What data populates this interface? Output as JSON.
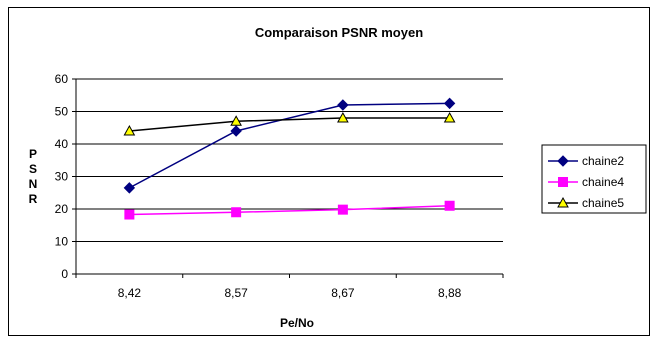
{
  "chart_data": {
    "type": "line",
    "title": "Comparaison PSNR moyen",
    "xlabel": "Pe/No",
    "ylabel": "PSNR",
    "categories": [
      "8,42",
      "8,57",
      "8,67",
      "8,88"
    ],
    "ylim": [
      0,
      60
    ],
    "yticks": [
      0,
      10,
      20,
      30,
      40,
      50,
      60
    ],
    "grid": "horizontal",
    "legend_position": "right",
    "series": [
      {
        "name": "chaine2",
        "values": [
          26.5,
          44,
          52,
          52.5
        ],
        "color": "#000080",
        "marker": "diamond",
        "marker_fill": "#000080"
      },
      {
        "name": "chaine4",
        "values": [
          18.3,
          19,
          19.8,
          21
        ],
        "color": "#FF00FF",
        "marker": "square",
        "marker_fill": "#FF00FF"
      },
      {
        "name": "chaine5",
        "values": [
          44,
          47,
          48,
          48
        ],
        "color": "#000000",
        "marker": "triangle",
        "marker_fill": "#FFFF00"
      }
    ]
  }
}
